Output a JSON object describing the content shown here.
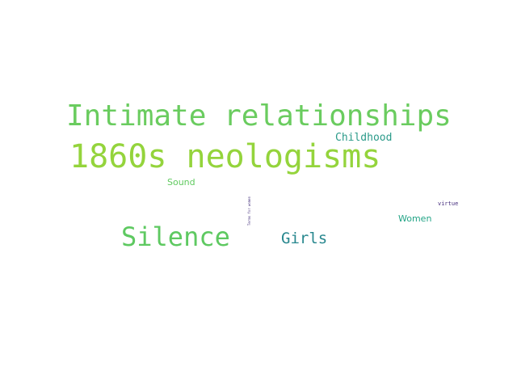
{
  "words": [
    {
      "text": "Intimate relationships",
      "color": "#6acc5f"
    },
    {
      "text": "1860s neologisms",
      "color": "#94d43c"
    },
    {
      "text": "Silence",
      "color": "#5ec961"
    },
    {
      "text": "Girls",
      "color": "#27878e"
    },
    {
      "text": "Childhood",
      "color": "#2a9a89"
    },
    {
      "text": "Sound",
      "color": "#60ca5f"
    },
    {
      "text": "Women",
      "color": "#22a486"
    },
    {
      "text": "virtue",
      "color": "#452d7d"
    },
    {
      "text": "Terms for women",
      "color": "#46327e"
    }
  ]
}
